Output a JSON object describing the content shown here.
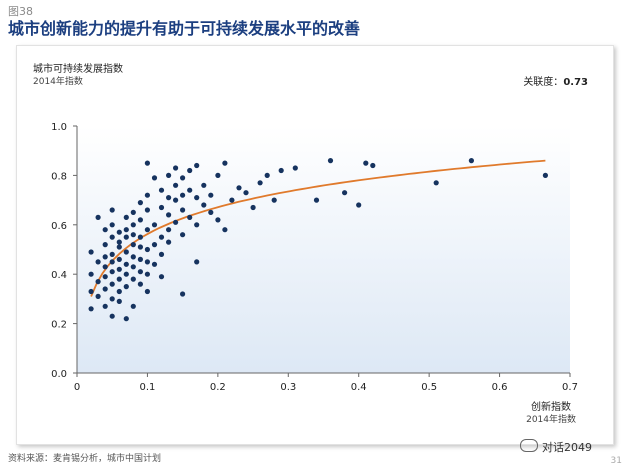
{
  "figure_number": "图38",
  "title": "城市创新能力的提升有助于可持续发展水平的改善",
  "source": "资料来源：麦肯锡分析，城市中国计划",
  "watermark": "对话2049",
  "page_number": "31",
  "colors": {
    "title": "#1c3f80",
    "points": "#16335f",
    "trend": "#e07a2c",
    "plot_bg_top": "#ffffff",
    "plot_bg_bottom": "#dde8f5"
  },
  "icons": [
    "wechat-icon"
  ],
  "chart_data": {
    "type": "scatter",
    "ylabel": "城市可持续发展指数",
    "ylabel_sub": "2014年指数",
    "xlabel": "创新指数",
    "xlabel_sub": "2014年指数",
    "correlation_label": "关联度：",
    "correlation_value": "0.73",
    "xlim": [
      0,
      0.7
    ],
    "ylim": [
      0,
      1.0
    ],
    "x_ticks": [
      "0",
      "0.1",
      "0.2",
      "0.3",
      "0.4",
      "0.5",
      "0.6",
      "0.7"
    ],
    "y_ticks": [
      "0.0",
      "0.2",
      "0.4",
      "0.6",
      "0.8",
      "1.0"
    ],
    "grid": false,
    "trend_line": {
      "type": "logarithmic",
      "x_range": [
        0.02,
        0.665
      ],
      "a": 0.86,
      "b": 0.157
    },
    "points": [
      [
        0.02,
        0.26
      ],
      [
        0.02,
        0.33
      ],
      [
        0.02,
        0.4
      ],
      [
        0.03,
        0.31
      ],
      [
        0.03,
        0.37
      ],
      [
        0.03,
        0.45
      ],
      [
        0.03,
        0.63
      ],
      [
        0.02,
        0.49
      ],
      [
        0.04,
        0.27
      ],
      [
        0.04,
        0.34
      ],
      [
        0.04,
        0.39
      ],
      [
        0.04,
        0.43
      ],
      [
        0.04,
        0.47
      ],
      [
        0.04,
        0.52
      ],
      [
        0.04,
        0.58
      ],
      [
        0.05,
        0.23
      ],
      [
        0.05,
        0.3
      ],
      [
        0.05,
        0.36
      ],
      [
        0.05,
        0.41
      ],
      [
        0.05,
        0.45
      ],
      [
        0.05,
        0.48
      ],
      [
        0.05,
        0.55
      ],
      [
        0.05,
        0.6
      ],
      [
        0.05,
        0.66
      ],
      [
        0.06,
        0.29
      ],
      [
        0.06,
        0.33
      ],
      [
        0.06,
        0.38
      ],
      [
        0.06,
        0.42
      ],
      [
        0.06,
        0.46
      ],
      [
        0.06,
        0.51
      ],
      [
        0.06,
        0.53
      ],
      [
        0.06,
        0.57
      ],
      [
        0.07,
        0.22
      ],
      [
        0.07,
        0.35
      ],
      [
        0.07,
        0.4
      ],
      [
        0.07,
        0.44
      ],
      [
        0.07,
        0.49
      ],
      [
        0.07,
        0.55
      ],
      [
        0.07,
        0.58
      ],
      [
        0.07,
        0.63
      ],
      [
        0.08,
        0.27
      ],
      [
        0.08,
        0.38
      ],
      [
        0.08,
        0.43
      ],
      [
        0.08,
        0.47
      ],
      [
        0.08,
        0.52
      ],
      [
        0.08,
        0.56
      ],
      [
        0.08,
        0.6
      ],
      [
        0.08,
        0.65
      ],
      [
        0.09,
        0.36
      ],
      [
        0.09,
        0.41
      ],
      [
        0.09,
        0.46
      ],
      [
        0.09,
        0.51
      ],
      [
        0.09,
        0.55
      ],
      [
        0.09,
        0.62
      ],
      [
        0.09,
        0.69
      ],
      [
        0.1,
        0.33
      ],
      [
        0.1,
        0.4
      ],
      [
        0.1,
        0.45
      ],
      [
        0.1,
        0.5
      ],
      [
        0.1,
        0.58
      ],
      [
        0.1,
        0.66
      ],
      [
        0.1,
        0.72
      ],
      [
        0.1,
        0.85
      ],
      [
        0.11,
        0.44
      ],
      [
        0.11,
        0.52
      ],
      [
        0.11,
        0.6
      ],
      [
        0.11,
        0.79
      ],
      [
        0.12,
        0.39
      ],
      [
        0.12,
        0.48
      ],
      [
        0.12,
        0.55
      ],
      [
        0.12,
        0.67
      ],
      [
        0.12,
        0.74
      ],
      [
        0.13,
        0.53
      ],
      [
        0.13,
        0.58
      ],
      [
        0.13,
        0.64
      ],
      [
        0.13,
        0.71
      ],
      [
        0.13,
        0.8
      ],
      [
        0.14,
        0.61
      ],
      [
        0.14,
        0.7
      ],
      [
        0.14,
        0.76
      ],
      [
        0.14,
        0.83
      ],
      [
        0.15,
        0.32
      ],
      [
        0.15,
        0.56
      ],
      [
        0.15,
        0.66
      ],
      [
        0.15,
        0.72
      ],
      [
        0.15,
        0.79
      ],
      [
        0.16,
        0.63
      ],
      [
        0.16,
        0.74
      ],
      [
        0.16,
        0.82
      ],
      [
        0.17,
        0.45
      ],
      [
        0.17,
        0.6
      ],
      [
        0.17,
        0.71
      ],
      [
        0.17,
        0.84
      ],
      [
        0.18,
        0.68
      ],
      [
        0.18,
        0.76
      ],
      [
        0.19,
        0.65
      ],
      [
        0.19,
        0.72
      ],
      [
        0.2,
        0.62
      ],
      [
        0.2,
        0.8
      ],
      [
        0.21,
        0.58
      ],
      [
        0.21,
        0.85
      ],
      [
        0.22,
        0.7
      ],
      [
        0.23,
        0.75
      ],
      [
        0.24,
        0.73
      ],
      [
        0.25,
        0.67
      ],
      [
        0.26,
        0.77
      ],
      [
        0.27,
        0.8
      ],
      [
        0.28,
        0.7
      ],
      [
        0.29,
        0.82
      ],
      [
        0.31,
        0.83
      ],
      [
        0.34,
        0.7
      ],
      [
        0.36,
        0.86
      ],
      [
        0.38,
        0.73
      ],
      [
        0.4,
        0.68
      ],
      [
        0.41,
        0.85
      ],
      [
        0.42,
        0.84
      ],
      [
        0.51,
        0.77
      ],
      [
        0.56,
        0.86
      ],
      [
        0.665,
        0.8
      ]
    ]
  }
}
